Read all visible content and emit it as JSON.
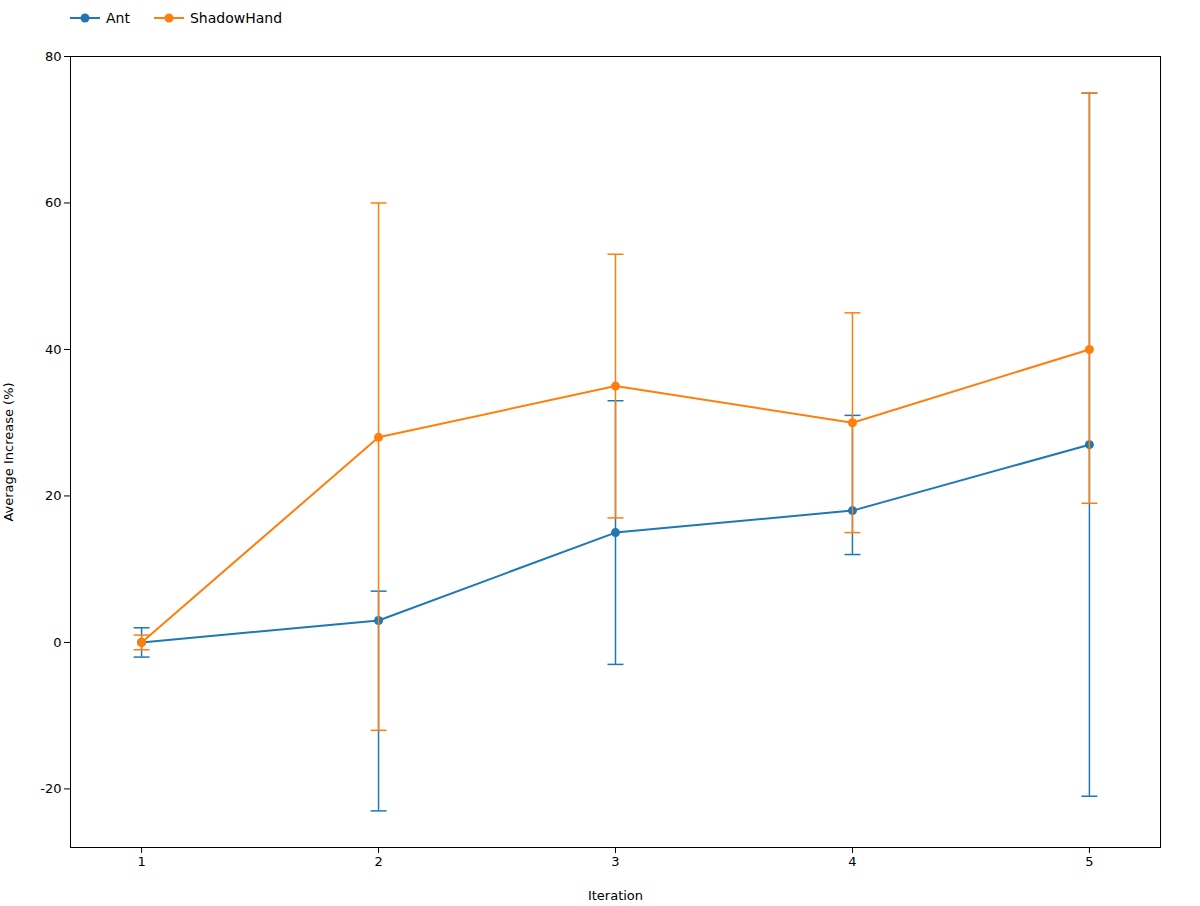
{
  "chart_data": {
    "type": "line",
    "xlabel": "Iteration",
    "ylabel": "Average Increase (%)",
    "x": [
      1,
      2,
      3,
      4,
      5
    ],
    "xlim": [
      0.7,
      5.3
    ],
    "ylim": [
      -28,
      80
    ],
    "xticks": [
      1,
      2,
      3,
      4,
      5
    ],
    "yticks": [
      -20,
      0,
      20,
      40,
      60,
      80
    ],
    "grid": false,
    "legend": "upper left",
    "marker": "o",
    "series": [
      {
        "name": "Ant",
        "color": "#1f77b4",
        "values": [
          0,
          3,
          15,
          18,
          27
        ],
        "yerr_lower": [
          2,
          26,
          18,
          6,
          48
        ],
        "yerr_upper": [
          2,
          4,
          18,
          13,
          48
        ]
      },
      {
        "name": "ShadowHand",
        "color": "#ff7f0e",
        "values": [
          0,
          28,
          35,
          30,
          40
        ],
        "yerr_lower": [
          1,
          40,
          18,
          15,
          21
        ],
        "yerr_upper": [
          1,
          32,
          18,
          15,
          35
        ]
      }
    ]
  }
}
